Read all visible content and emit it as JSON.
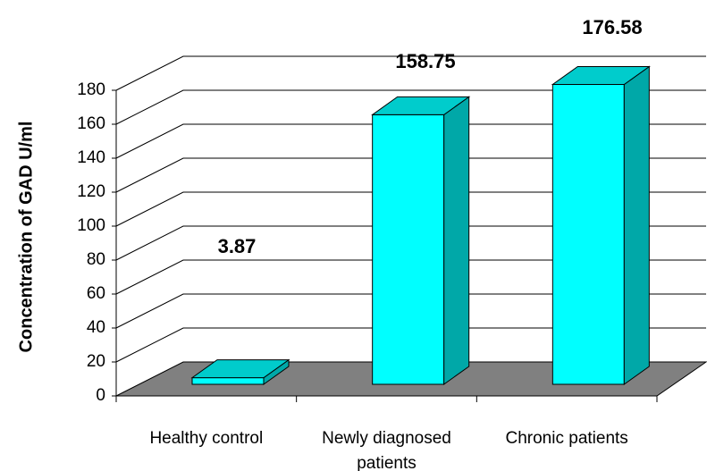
{
  "chart_data": {
    "type": "bar3d",
    "y_label": "Concentration of GAD U/ml",
    "categories": [
      "Healthy control",
      "Newly diagnosed patients",
      "Chronic patients"
    ],
    "values": [
      3.87,
      158.75,
      176.58
    ],
    "color": "#00ffff",
    "ylim": [
      0,
      180
    ],
    "yticks": [
      0,
      20,
      40,
      60,
      80,
      100,
      120,
      140,
      160,
      180
    ],
    "grid": true
  }
}
